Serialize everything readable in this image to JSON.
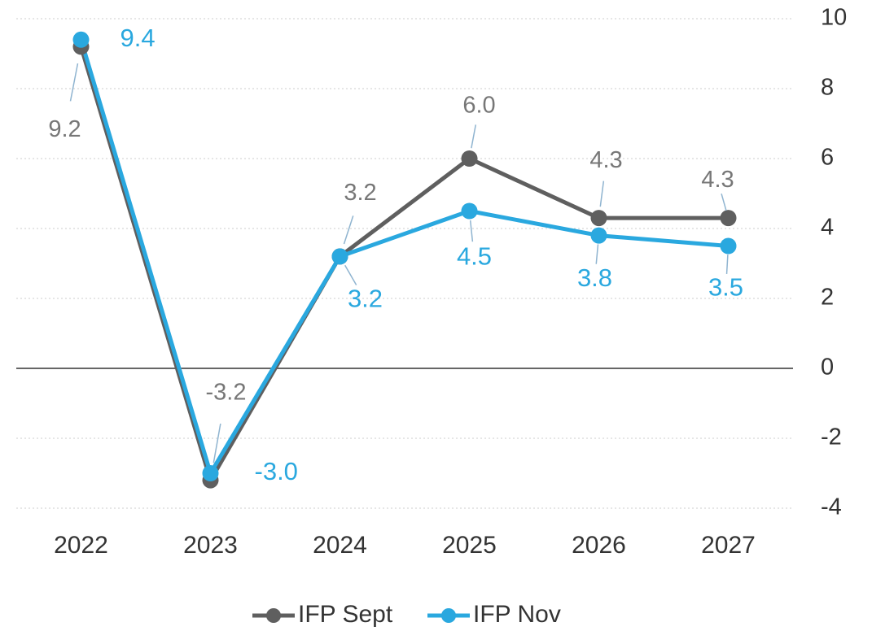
{
  "chart_data": {
    "type": "line",
    "categories": [
      "2022",
      "2023",
      "2024",
      "2025",
      "2026",
      "2027"
    ],
    "series": [
      {
        "name": "IFP Sept",
        "color": "#5f5f5f",
        "values": [
          9.2,
          -3.2,
          3.2,
          6.0,
          4.3,
          4.3
        ],
        "value_labels": [
          "9.2",
          "-3.2",
          "3.2",
          "6.0",
          "4.3",
          "4.3"
        ]
      },
      {
        "name": "IFP Nov",
        "color": "#2aa8df",
        "values": [
          9.4,
          -3.0,
          3.2,
          4.5,
          3.8,
          3.5
        ],
        "value_labels": [
          "9.4",
          "-3.0",
          "3.2",
          "4.5",
          "3.8",
          "3.5"
        ]
      }
    ],
    "ylim": [
      -4,
      10
    ],
    "yticks": [
      -4,
      -2,
      0,
      2,
      4,
      6,
      8,
      10
    ],
    "grid": true,
    "legend": "bottom"
  }
}
